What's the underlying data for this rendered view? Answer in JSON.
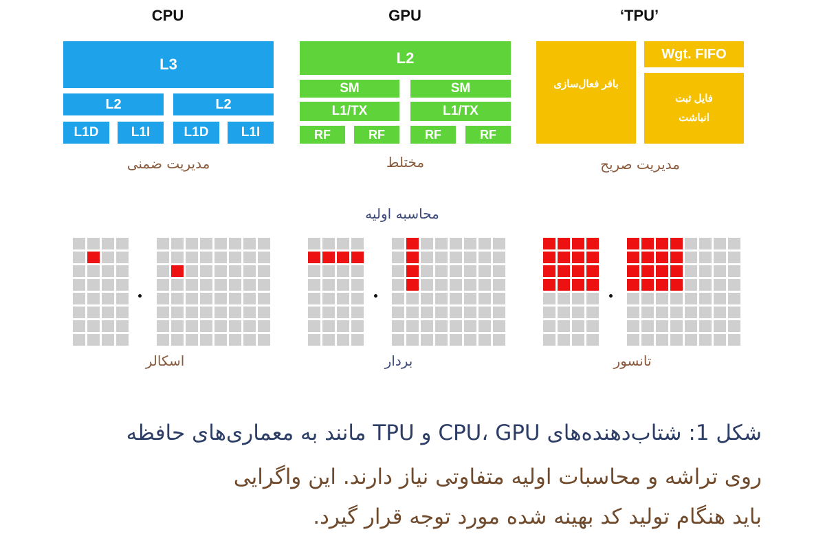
{
  "titles": {
    "cpu": "CPU",
    "gpu": "GPU",
    "tpu": "‘TPU’"
  },
  "cpu": {
    "l3": "L3",
    "l2": "L2",
    "l1d": "L1D",
    "l1i": "L1I",
    "caption": "مدیریت ضمنی"
  },
  "gpu": {
    "l2": "L2",
    "sm": "SM",
    "l1tx": "L1/TX",
    "rf": "RF",
    "caption": "مختلط"
  },
  "tpu": {
    "activation_buffer": "بافر فعال‌سازی",
    "wgt_fifo": "Wgt. FIFO",
    "accum_register": "فایل ثبت انباشت",
    "caption": "مدیریت صریح"
  },
  "primitive_label": "محاسبه اولیه",
  "compute": {
    "scalar": "اسکالر",
    "vector": "بردار",
    "tensor": "تانسور"
  },
  "figure_caption": {
    "line1": "شکل 1: شتاب‌دهنده‌های CPU، GPU و TPU مانند به معماری‌های حافظه",
    "line2": "روی تراشه و محاسبات اولیه متفاوتی نیاز دارند. این واگرایی",
    "line3": "باید هنگام تولید کد بهینه شده مورد توجه قرار گیرد."
  },
  "colors": {
    "cpu": "#1ea3ea",
    "gpu": "#5fd33a",
    "tpu": "#f5c000",
    "highlight": "#ee1111",
    "cell": "#cfcfcf"
  },
  "matrices": [
    {
      "name": "scalar-left-matrix",
      "rows": 8,
      "cols": 4,
      "on": [
        [
          1,
          1
        ]
      ]
    },
    {
      "name": "scalar-right-matrix",
      "rows": 8,
      "cols": 8,
      "on": [
        [
          2,
          1
        ]
      ]
    },
    {
      "name": "vector-left-matrix",
      "rows": 8,
      "cols": 4,
      "on": [
        [
          1,
          0
        ],
        [
          1,
          1
        ],
        [
          1,
          2
        ],
        [
          1,
          3
        ]
      ]
    },
    {
      "name": "vector-right-matrix",
      "rows": 8,
      "cols": 8,
      "on": [
        [
          0,
          1
        ],
        [
          1,
          1
        ],
        [
          2,
          1
        ],
        [
          3,
          1
        ]
      ]
    },
    {
      "name": "tensor-left-matrix",
      "rows": 8,
      "cols": 4,
      "on": [
        [
          0,
          0
        ],
        [
          0,
          1
        ],
        [
          0,
          2
        ],
        [
          0,
          3
        ],
        [
          1,
          0
        ],
        [
          1,
          1
        ],
        [
          1,
          2
        ],
        [
          1,
          3
        ],
        [
          2,
          0
        ],
        [
          2,
          1
        ],
        [
          2,
          2
        ],
        [
          2,
          3
        ],
        [
          3,
          0
        ],
        [
          3,
          1
        ],
        [
          3,
          2
        ],
        [
          3,
          3
        ]
      ]
    },
    {
      "name": "tensor-right-matrix",
      "rows": 8,
      "cols": 8,
      "on": [
        [
          0,
          0
        ],
        [
          0,
          1
        ],
        [
          0,
          2
        ],
        [
          0,
          3
        ],
        [
          1,
          0
        ],
        [
          1,
          1
        ],
        [
          1,
          2
        ],
        [
          1,
          3
        ],
        [
          2,
          0
        ],
        [
          2,
          1
        ],
        [
          2,
          2
        ],
        [
          2,
          3
        ],
        [
          3,
          0
        ],
        [
          3,
          1
        ],
        [
          3,
          2
        ],
        [
          3,
          3
        ]
      ]
    }
  ]
}
